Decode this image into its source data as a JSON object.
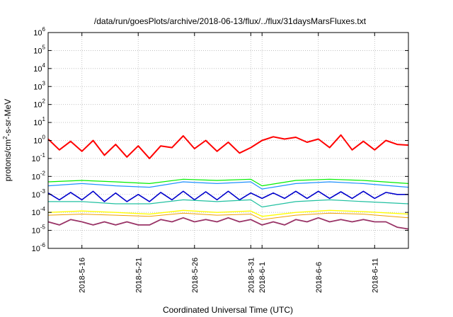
{
  "chart_data": {
    "type": "line",
    "title": "/data/run/goesPlots/archive/2018-06-13/flux/../flux/31daysMarsFluxes.txt",
    "xlabel": "Coordinated Universal Time (UTC)",
    "ylabel": "protons/cm²-s-sr-MeV",
    "ylabel_parts": {
      "pre": "protons/cm",
      "sup": "2",
      "post": "-s-sr-MeV"
    },
    "yscale": "log",
    "ylim": [
      1e-06,
      1000000.0
    ],
    "xlim": [
      "2018-05-13T00:00",
      "2018-06-14T00:00"
    ],
    "grid": true,
    "y_ticks": [
      {
        "value": 1e-06,
        "base": "10",
        "exp": "-6"
      },
      {
        "value": 1e-05,
        "base": "10",
        "exp": "-5"
      },
      {
        "value": 0.0001,
        "base": "10",
        "exp": "-4"
      },
      {
        "value": 0.001,
        "base": "10",
        "exp": "-3"
      },
      {
        "value": 0.01,
        "base": "10",
        "exp": "-2"
      },
      {
        "value": 0.1,
        "base": "10",
        "exp": "-1"
      },
      {
        "value": 1,
        "base": "10",
        "exp": "0"
      },
      {
        "value": 10,
        "base": "10",
        "exp": "1"
      },
      {
        "value": 100,
        "base": "10",
        "exp": "2"
      },
      {
        "value": 1000,
        "base": "10",
        "exp": "3"
      },
      {
        "value": 10000,
        "base": "10",
        "exp": "4"
      },
      {
        "value": 100000,
        "base": "10",
        "exp": "5"
      },
      {
        "value": 1000000,
        "base": "10",
        "exp": "6"
      }
    ],
    "x_ticks": [
      {
        "date": "2018-05-16",
        "label": "2018-5-16"
      },
      {
        "date": "2018-05-21",
        "label": "2018-5-21"
      },
      {
        "date": "2018-05-26",
        "label": "2018-5-26"
      },
      {
        "date": "2018-05-31",
        "label": "2018-5-31"
      },
      {
        "date": "2018-06-01",
        "label": "2018-6-1"
      },
      {
        "date": "2018-06-06",
        "label": "2018-6-6"
      },
      {
        "date": "2018-06-11",
        "label": "2018-6-11"
      }
    ],
    "series": [
      {
        "color": "#ff0000",
        "width": 2.0,
        "x": [
          "2018-05-13",
          "2018-05-14",
          "2018-05-15",
          "2018-05-16",
          "2018-05-17",
          "2018-05-18",
          "2018-05-19",
          "2018-05-20",
          "2018-05-21",
          "2018-05-22",
          "2018-05-23",
          "2018-05-24",
          "2018-05-25",
          "2018-05-26",
          "2018-05-27",
          "2018-05-28",
          "2018-05-29",
          "2018-05-30",
          "2018-05-31",
          "2018-06-01",
          "2018-06-02",
          "2018-06-03",
          "2018-06-04",
          "2018-06-05",
          "2018-06-06",
          "2018-06-07",
          "2018-06-08",
          "2018-06-09",
          "2018-06-10",
          "2018-06-11",
          "2018-06-12",
          "2018-06-13",
          "2018-06-14"
        ],
        "y": [
          1.2,
          0.3,
          0.9,
          0.25,
          1.0,
          0.15,
          0.6,
          0.12,
          0.5,
          0.1,
          0.5,
          0.4,
          1.8,
          0.35,
          1.0,
          0.25,
          0.8,
          0.2,
          0.4,
          1.0,
          1.6,
          1.2,
          1.5,
          0.8,
          1.2,
          0.4,
          2.0,
          0.3,
          0.9,
          0.3,
          1.0,
          0.6,
          0.55
        ]
      },
      {
        "color": "#00ee00",
        "width": 1.2,
        "x": [
          "2018-05-13",
          "2018-05-16",
          "2018-05-19",
          "2018-05-22",
          "2018-05-25",
          "2018-05-28",
          "2018-05-31",
          "2018-06-01",
          "2018-06-04",
          "2018-06-07",
          "2018-06-10",
          "2018-06-14"
        ],
        "y": [
          0.005,
          0.006,
          0.005,
          0.004,
          0.007,
          0.006,
          0.007,
          0.003,
          0.006,
          0.007,
          0.006,
          0.004
        ]
      },
      {
        "color": "#1e90ff",
        "width": 1.2,
        "x": [
          "2018-05-13",
          "2018-05-16",
          "2018-05-19",
          "2018-05-22",
          "2018-05-25",
          "2018-05-28",
          "2018-05-31",
          "2018-06-01",
          "2018-06-04",
          "2018-06-07",
          "2018-06-10",
          "2018-06-14"
        ],
        "y": [
          0.003,
          0.004,
          0.003,
          0.0025,
          0.005,
          0.004,
          0.005,
          0.002,
          0.004,
          0.005,
          0.004,
          0.0025
        ]
      },
      {
        "color": "#0000cc",
        "width": 1.6,
        "x": [
          "2018-05-13",
          "2018-05-14",
          "2018-05-15",
          "2018-05-16",
          "2018-05-17",
          "2018-05-18",
          "2018-05-19",
          "2018-05-20",
          "2018-05-21",
          "2018-05-22",
          "2018-05-23",
          "2018-05-24",
          "2018-05-25",
          "2018-05-26",
          "2018-05-27",
          "2018-05-28",
          "2018-05-29",
          "2018-05-30",
          "2018-05-31",
          "2018-06-01",
          "2018-06-02",
          "2018-06-03",
          "2018-06-04",
          "2018-06-05",
          "2018-06-06",
          "2018-06-07",
          "2018-06-08",
          "2018-06-09",
          "2018-06-10",
          "2018-06-11",
          "2018-06-12",
          "2018-06-13",
          "2018-06-14"
        ],
        "y": [
          0.0012,
          0.0005,
          0.0013,
          0.0005,
          0.0015,
          0.0004,
          0.0012,
          0.0004,
          0.001,
          0.0004,
          0.0013,
          0.0005,
          0.0015,
          0.0005,
          0.0014,
          0.0005,
          0.0015,
          0.0005,
          0.0012,
          0.0006,
          0.0012,
          0.0006,
          0.0015,
          0.0006,
          0.0015,
          0.0006,
          0.0014,
          0.0006,
          0.0015,
          0.0006,
          0.0013,
          0.001,
          0.001
        ]
      },
      {
        "color": "#20c0a0",
        "width": 1.2,
        "x": [
          "2018-05-13",
          "2018-05-16",
          "2018-05-19",
          "2018-05-22",
          "2018-05-25",
          "2018-05-28",
          "2018-05-31",
          "2018-06-01",
          "2018-06-04",
          "2018-06-07",
          "2018-06-10",
          "2018-06-14"
        ],
        "y": [
          0.0004,
          0.0004,
          0.0003,
          0.0003,
          0.0005,
          0.0004,
          0.0005,
          0.0002,
          0.0004,
          0.0005,
          0.0004,
          0.0003
        ]
      },
      {
        "color": "#ffff00",
        "width": 1.4,
        "x": [
          "2018-05-13",
          "2018-05-16",
          "2018-05-19",
          "2018-05-22",
          "2018-05-25",
          "2018-05-28",
          "2018-05-31",
          "2018-06-01",
          "2018-06-04",
          "2018-06-07",
          "2018-06-10",
          "2018-06-14"
        ],
        "y": [
          0.0001,
          0.00012,
          0.0001,
          8e-05,
          0.00013,
          0.0001,
          0.00012,
          6e-05,
          0.0001,
          0.00013,
          0.00011,
          8e-05
        ]
      },
      {
        "color": "#f0a000",
        "width": 1.0,
        "x": [
          "2018-05-13",
          "2018-05-16",
          "2018-05-19",
          "2018-05-22",
          "2018-05-25",
          "2018-05-28",
          "2018-05-31",
          "2018-06-01",
          "2018-06-04",
          "2018-06-07",
          "2018-06-10",
          "2018-06-14"
        ],
        "y": [
          7e-05,
          8e-05,
          7e-05,
          6e-05,
          9e-05,
          7e-05,
          8e-05,
          4e-05,
          7e-05,
          9e-05,
          8e-05,
          5e-05
        ]
      },
      {
        "color": "#993366",
        "width": 1.8,
        "x": [
          "2018-05-13",
          "2018-05-14",
          "2018-05-15",
          "2018-05-16",
          "2018-05-17",
          "2018-05-18",
          "2018-05-19",
          "2018-05-20",
          "2018-05-21",
          "2018-05-22",
          "2018-05-23",
          "2018-05-24",
          "2018-05-25",
          "2018-05-26",
          "2018-05-27",
          "2018-05-28",
          "2018-05-29",
          "2018-05-30",
          "2018-05-31",
          "2018-06-01",
          "2018-06-02",
          "2018-06-03",
          "2018-06-04",
          "2018-06-05",
          "2018-06-06",
          "2018-06-07",
          "2018-06-08",
          "2018-06-09",
          "2018-06-10",
          "2018-06-11",
          "2018-06-12",
          "2018-06-13",
          "2018-06-14"
        ],
        "y": [
          3e-05,
          2e-05,
          4e-05,
          3e-05,
          2e-05,
          3e-05,
          2e-05,
          3e-05,
          2e-05,
          2e-05,
          4e-05,
          3e-05,
          5e-05,
          3e-05,
          4e-05,
          3e-05,
          5e-05,
          3e-05,
          4e-05,
          2e-05,
          3e-05,
          2e-05,
          4e-05,
          3e-05,
          5e-05,
          3e-05,
          4e-05,
          3e-05,
          4e-05,
          3e-05,
          3e-05,
          1.5e-05,
          1.2e-05
        ]
      }
    ]
  }
}
